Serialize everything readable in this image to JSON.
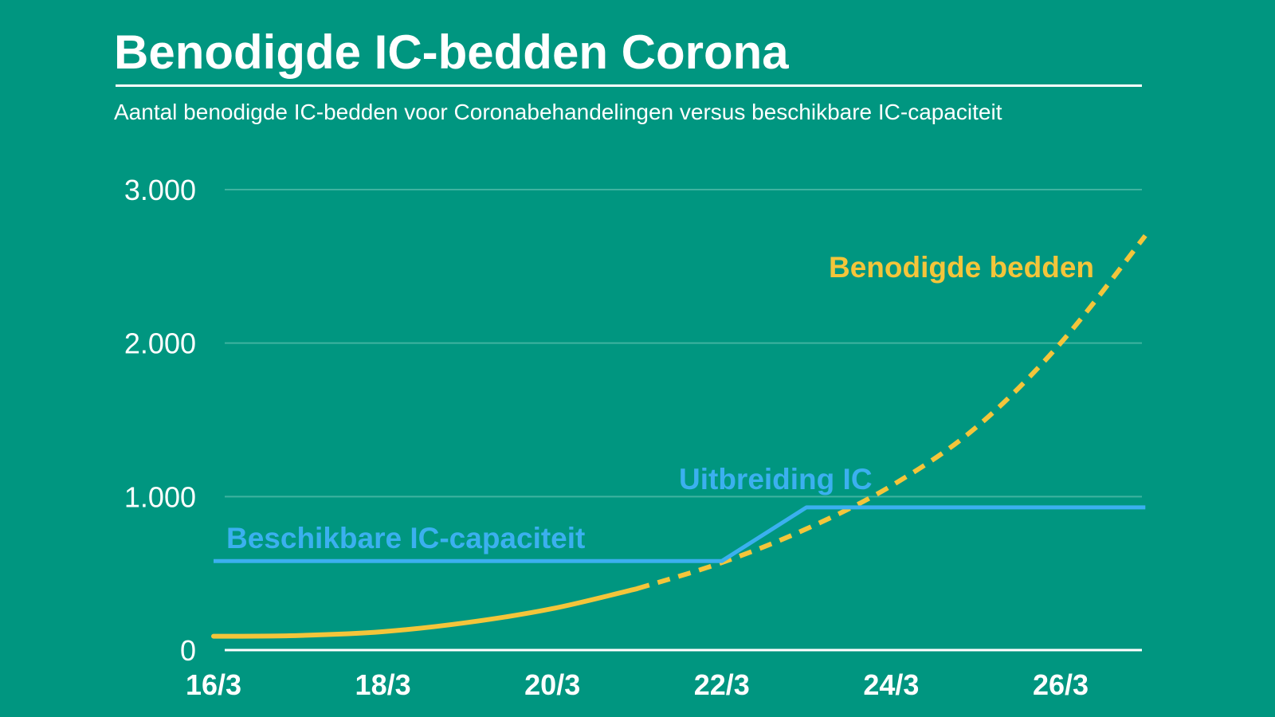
{
  "header": {
    "title": "Benodigde IC-bedden Corona",
    "subtitle": "Aantal benodigde IC-bedden voor Coronabehandelingen versus beschikbare IC-capaciteit"
  },
  "colors": {
    "background": "#009680",
    "needed": "#f4c53a",
    "capacity": "#3bb0ef",
    "grid": "#3fb3a0",
    "axis": "#ffffff"
  },
  "chart_data": {
    "type": "line",
    "title": "Benodigde IC-bedden Corona",
    "subtitle": "Aantal benodigde IC-bedden voor Coronabehandelingen versus beschikbare IC-capaciteit",
    "xlabel": "",
    "ylabel": "",
    "ylim": [
      0,
      3000
    ],
    "xlim": [
      "16/3",
      "27/3"
    ],
    "yticks": [
      {
        "value": 0,
        "label": "0"
      },
      {
        "value": 1000,
        "label": "1.000"
      },
      {
        "value": 2000,
        "label": "2.000"
      },
      {
        "value": 3000,
        "label": "3.000"
      }
    ],
    "xticks": [
      "16/3",
      "18/3",
      "20/3",
      "22/3",
      "24/3",
      "26/3"
    ],
    "grid": true,
    "legend": "inline",
    "series": [
      {
        "name": "Benodigde bedden",
        "style": "solid until 21/3, dashed (projection) after",
        "x": [
          "16/3",
          "17/3",
          "18/3",
          "19/3",
          "20/3",
          "21/3",
          "22/3",
          "23/3",
          "24/3",
          "25/3",
          "26/3",
          "27/3"
        ],
        "values": [
          90,
          95,
          120,
          180,
          270,
          400,
          570,
          790,
          1070,
          1450,
          2000,
          2700
        ]
      },
      {
        "name": "Beschikbare IC-capaciteit",
        "x": [
          "16/3",
          "22/3",
          "23/3",
          "27/3"
        ],
        "values": [
          580,
          580,
          930,
          930
        ]
      }
    ],
    "annotations": [
      {
        "text": "Benodigde bedden",
        "series": "Benodigde bedden"
      },
      {
        "text": "Beschikbare IC-capaciteit",
        "series": "Beschikbare IC-capaciteit"
      },
      {
        "text": "Uitbreiding IC",
        "series": "Beschikbare IC-capaciteit"
      }
    ]
  }
}
